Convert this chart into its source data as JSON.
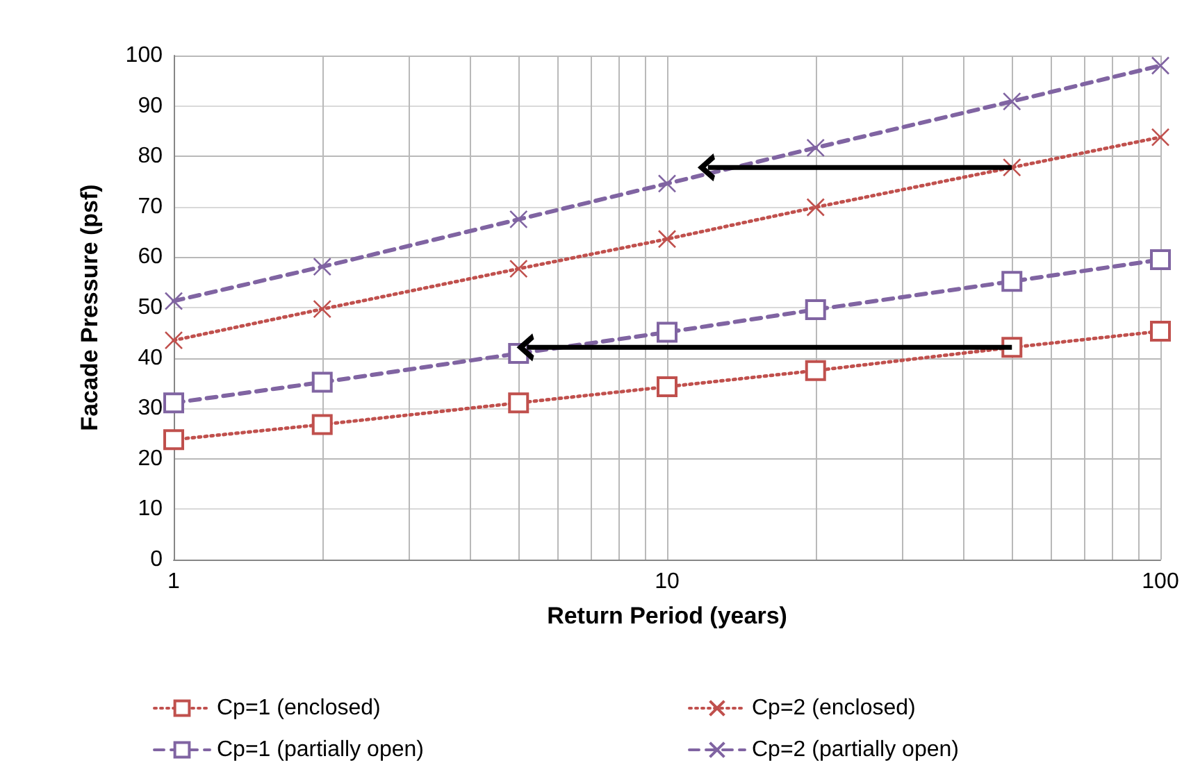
{
  "chart_data": {
    "type": "line",
    "xlabel": "Return Period (years)",
    "ylabel": "Facade Pressure (psf)",
    "x": [
      1,
      2,
      5,
      10,
      20,
      50,
      100
    ],
    "xlim": [
      1,
      100
    ],
    "xticks": [
      1,
      {
        "value": 2,
        "label": null
      },
      {
        "value": 3,
        "label": null
      },
      {
        "value": 4,
        "label": null
      },
      {
        "value": 5,
        "label": null
      },
      {
        "value": 6,
        "label": null
      },
      {
        "value": 7,
        "label": null
      },
      {
        "value": 8,
        "label": null
      },
      {
        "value": 9,
        "label": null
      },
      10,
      {
        "value": 20,
        "label": null
      },
      {
        "value": 30,
        "label": null
      },
      {
        "value": 40,
        "label": null
      },
      {
        "value": 50,
        "label": null
      },
      {
        "value": 60,
        "label": null
      },
      {
        "value": 70,
        "label": null
      },
      {
        "value": 80,
        "label": null
      },
      {
        "value": 90,
        "label": null
      },
      100
    ],
    "ylim": [
      0,
      100
    ],
    "yticks": [
      0,
      10,
      20,
      30,
      40,
      50,
      60,
      70,
      80,
      90,
      100
    ],
    "log": "x",
    "grid": true,
    "legend": "bottom",
    "series": [
      {
        "name": "Cp=1 (enclosed)",
        "color": "#c0504d",
        "marker": "square",
        "line_style": "dotted",
        "values": [
          23.8,
          26.8,
          31.1,
          34.3,
          37.5,
          42.1,
          45.3
        ]
      },
      {
        "name": "Cp=2 (enclosed)",
        "color": "#c0504d",
        "marker": "cross",
        "line_style": "dotted",
        "values": [
          43.5,
          49.7,
          57.7,
          63.6,
          69.9,
          77.8,
          83.8
        ]
      },
      {
        "name": "Cp=1 (partially open)",
        "color": "#8064a2",
        "marker": "square",
        "line_style": "dashed",
        "values": [
          31.1,
          35.2,
          40.9,
          45.1,
          49.6,
          55.2,
          59.5
        ]
      },
      {
        "name": "Cp=2 (partially open)",
        "color": "#8064a2",
        "marker": "cross",
        "line_style": "dashed",
        "values": [
          51.3,
          58.1,
          67.5,
          74.6,
          81.7,
          90.9,
          98.0
        ]
      },
      {
        "color": "#000000",
        "line_style": "solid",
        "x": [
          50,
          12.1
        ],
        "values": [
          77.8,
          77.8
        ]
      },
      {
        "color": "#000000",
        "line_style": "solid",
        "x": [
          50,
          5.2
        ],
        "values": [
          42.1,
          42.1
        ]
      }
    ]
  }
}
